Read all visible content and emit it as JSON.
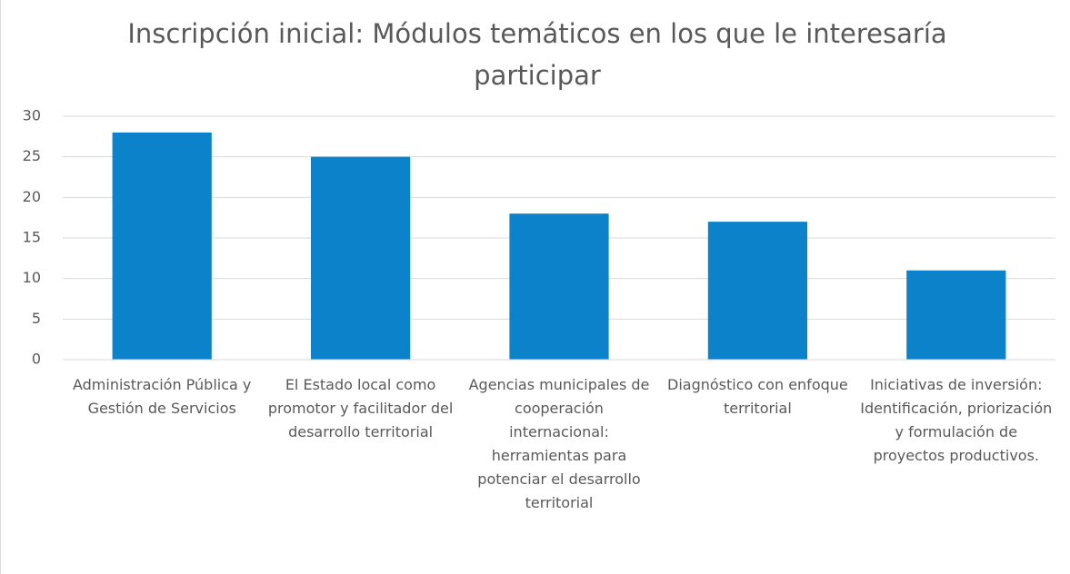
{
  "chart_data": {
    "type": "bar",
    "title": "Inscripción inicial: Módulos temáticos en los que le interesaría participar",
    "categories": [
      "Administración Pública y Gestión de Servicios",
      "El Estado local como promotor y facilitador del desarrollo territorial",
      "Agencias municipales de cooperación internacional: herramientas para potenciar el desarrollo territorial",
      "Diagnóstico con enfoque territorial",
      "Iniciativas de inversión: Identificación, priorización y formulación de proyectos productivos."
    ],
    "values": [
      28,
      25,
      18,
      17,
      11
    ],
    "color": "#0b82ca",
    "ylim": [
      0,
      30
    ],
    "yticks": [
      0,
      5,
      10,
      15,
      20,
      25,
      30
    ],
    "grid": true
  }
}
